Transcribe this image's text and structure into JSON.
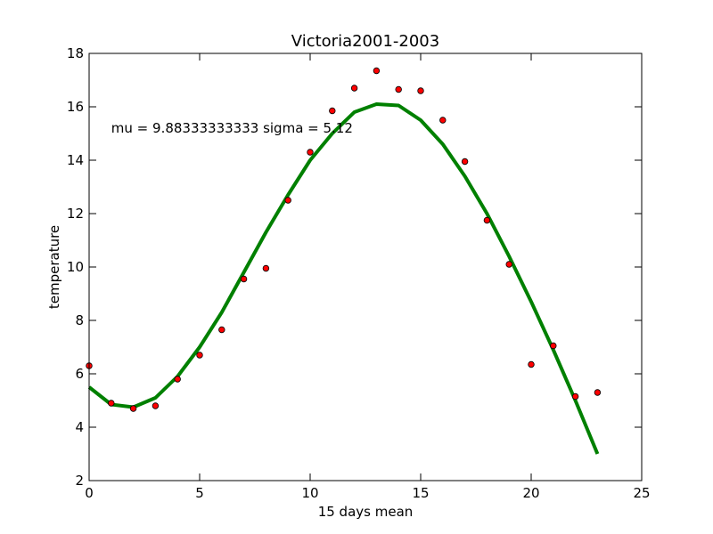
{
  "chart_data": {
    "type": "scatter",
    "title": "Victoria2001-2003",
    "xlabel": "15 days mean",
    "ylabel": "temperature",
    "xlim": [
      0,
      25
    ],
    "ylim": [
      2,
      18
    ],
    "xticks": [
      0,
      5,
      10,
      15,
      20,
      25
    ],
    "yticks": [
      2,
      4,
      6,
      8,
      10,
      12,
      14,
      16,
      18
    ],
    "xtick_labels": [
      "0",
      "5",
      "10",
      "15",
      "20",
      "25"
    ],
    "ytick_labels": [
      "2",
      "4",
      "6",
      "8",
      "10",
      "12",
      "14",
      "16",
      "18"
    ],
    "grid": false,
    "annotation": {
      "text": "mu = 9.88333333333 sigma = 5.12",
      "x": 1,
      "y": 15.2
    },
    "series": [
      {
        "kind": "scatter",
        "color": "#ff0000",
        "edge_color": "#000000",
        "points": [
          [
            0,
            6.3
          ],
          [
            1,
            4.9
          ],
          [
            2,
            4.7
          ],
          [
            3,
            4.8
          ],
          [
            4,
            5.8
          ],
          [
            5,
            6.7
          ],
          [
            6,
            7.65
          ],
          [
            7,
            9.55
          ],
          [
            8,
            9.95
          ],
          [
            9,
            12.5
          ],
          [
            10,
            14.3
          ],
          [
            11,
            15.85
          ],
          [
            12,
            16.7
          ],
          [
            13,
            17.35
          ],
          [
            14,
            16.65
          ],
          [
            15,
            16.6
          ],
          [
            16,
            15.5
          ],
          [
            17,
            13.95
          ],
          [
            18,
            11.75
          ],
          [
            19,
            10.1
          ],
          [
            20,
            6.35
          ],
          [
            21,
            7.05
          ],
          [
            22,
            5.15
          ],
          [
            23,
            5.3
          ]
        ]
      },
      {
        "kind": "line",
        "color": "#008000",
        "x": [
          0,
          1,
          2,
          3,
          4,
          5,
          6,
          7,
          8,
          9,
          10,
          11,
          12,
          13,
          14,
          15,
          16,
          17,
          18,
          19,
          20,
          21,
          22,
          23
        ],
        "y": [
          5.5,
          4.85,
          4.75,
          5.1,
          5.9,
          7.0,
          8.3,
          9.8,
          11.3,
          12.7,
          14.0,
          15.0,
          15.8,
          16.1,
          16.05,
          15.5,
          14.6,
          13.4,
          12.0,
          10.4,
          8.7,
          6.9,
          5.0,
          3.0
        ]
      }
    ]
  }
}
